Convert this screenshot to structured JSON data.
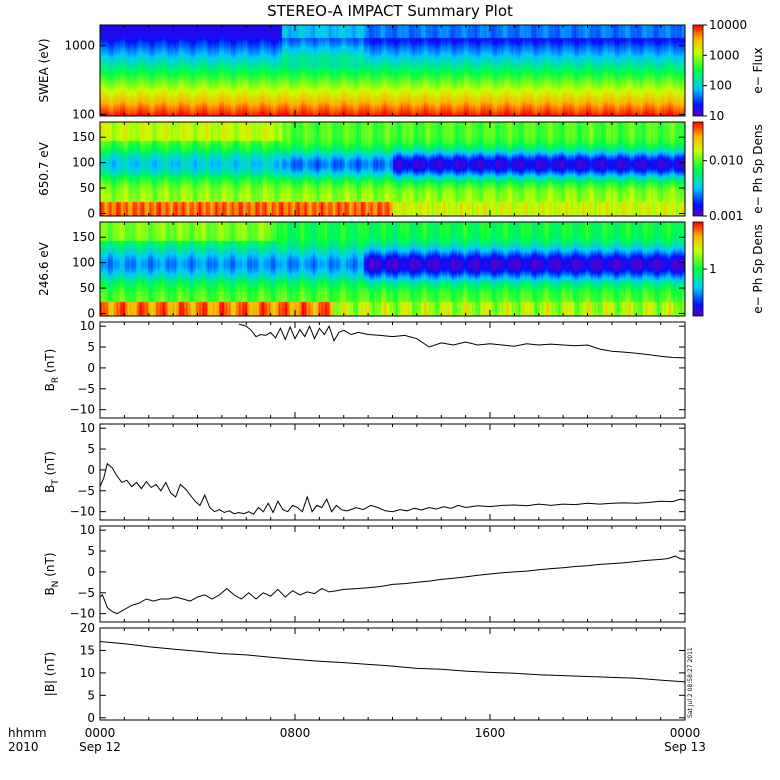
{
  "chart_data": {
    "title": "STEREO-A IMPACT Summary Plot",
    "time_axis": {
      "corner_label_top": "hhmm",
      "corner_label_bottom": "2010",
      "range_hours": [
        0,
        24
      ],
      "ticks": [
        {
          "hour": 0,
          "label": "0000",
          "sublabel": "Sep 12"
        },
        {
          "hour": 8,
          "label": "0800",
          "sublabel": ""
        },
        {
          "hour": 16,
          "label": "1600",
          "sublabel": ""
        },
        {
          "hour": 24,
          "label": "0000",
          "sublabel": "Sep 13"
        }
      ]
    },
    "timestamp_label": "Sat Jul  2 08:58:27 2011",
    "spectrograms": [
      {
        "type": "heatmap",
        "ylabel": "SWEA (eV)",
        "yscale": "log",
        "ylim": [
          95,
          2000
        ],
        "yticks": [
          {
            "v": 100,
            "label": "100"
          },
          {
            "v": 1000,
            "label": "1000"
          }
        ],
        "colorbar_label": "e− Flux",
        "colorbar_scale": "log",
        "colorbar_range": [
          10,
          10000
        ],
        "colorbar_ticks": [
          {
            "v": 10,
            "label": "10"
          },
          {
            "v": 100,
            "label": "100"
          },
          {
            "v": 1000,
            "label": "1000"
          },
          {
            "v": 10000,
            "label": "10000"
          }
        ]
      },
      {
        "type": "heatmap",
        "ylabel": "650.7 eV",
        "yscale": "linear",
        "ylim": [
          -5,
          180
        ],
        "yticks": [
          {
            "v": 0,
            "label": "0"
          },
          {
            "v": 50,
            "label": "50"
          },
          {
            "v": 100,
            "label": "100"
          },
          {
            "v": 150,
            "label": "150"
          }
        ],
        "colorbar_label": "e− Ph Sp Dens",
        "colorbar_scale": "log",
        "colorbar_range": [
          0.001,
          0.05
        ],
        "colorbar_ticks": [
          {
            "v": 0.001,
            "label": "0.001"
          },
          {
            "v": 0.01,
            "label": "0.010"
          }
        ]
      },
      {
        "type": "heatmap",
        "ylabel": "246.6 eV",
        "yscale": "linear",
        "ylim": [
          -5,
          180
        ],
        "yticks": [
          {
            "v": 0,
            "label": "0"
          },
          {
            "v": 50,
            "label": "50"
          },
          {
            "v": 100,
            "label": "100"
          },
          {
            "v": 150,
            "label": "150"
          }
        ],
        "colorbar_label": "e− Ph Sp Dens",
        "colorbar_scale": "log",
        "colorbar_range": [
          0.2,
          5
        ],
        "colorbar_ticks": [
          {
            "v": 1,
            "label": "1"
          }
        ]
      }
    ],
    "line_panels": [
      {
        "type": "line",
        "ylabel_main": "B",
        "ylabel_sub": "R",
        "ylabel_unit": " (nT)",
        "ylim": [
          -12,
          11
        ],
        "yticks": [
          {
            "v": -10,
            "label": "−10"
          },
          {
            "v": -5,
            "label": "−5"
          },
          {
            "v": 0,
            "label": "0"
          },
          {
            "v": 5,
            "label": "5"
          },
          {
            "v": 10,
            "label": "10"
          }
        ],
        "x": [
          5.7,
          6.0,
          6.2,
          6.4,
          6.6,
          6.8,
          7.0,
          7.2,
          7.4,
          7.6,
          7.8,
          8.0,
          8.2,
          8.4,
          8.6,
          8.8,
          9.0,
          9.2,
          9.4,
          9.6,
          9.8,
          10.0,
          10.3,
          10.6,
          11.0,
          11.5,
          12.0,
          12.5,
          13.0,
          13.5,
          14.0,
          14.5,
          15.0,
          15.5,
          16.0,
          16.5,
          17.0,
          17.5,
          18.0,
          18.5,
          19.0,
          19.5,
          20.0,
          20.5,
          21.0,
          21.5,
          22.0,
          22.5,
          23.0,
          23.5,
          24.0
        ],
        "y": [
          10.5,
          10.0,
          9.0,
          7.5,
          8.0,
          7.8,
          8.5,
          7.2,
          9.5,
          6.8,
          9.8,
          7.0,
          9.2,
          7.5,
          10.0,
          7.0,
          9.5,
          8.0,
          10.0,
          6.5,
          8.5,
          9.0,
          8.0,
          8.5,
          8.0,
          7.8,
          7.5,
          7.8,
          7.0,
          5.0,
          6.0,
          5.5,
          6.2,
          5.5,
          5.8,
          5.5,
          5.2,
          5.8,
          5.5,
          5.7,
          5.5,
          5.3,
          5.5,
          4.5,
          4.0,
          3.8,
          3.5,
          3.2,
          2.8,
          2.5,
          2.4
        ]
      },
      {
        "type": "line",
        "ylabel_main": "B",
        "ylabel_sub": "T",
        "ylabel_unit": " (nT)",
        "ylim": [
          -12,
          11
        ],
        "yticks": [
          {
            "v": -10,
            "label": "−10"
          },
          {
            "v": -5,
            "label": "−5"
          },
          {
            "v": 0,
            "label": "0"
          },
          {
            "v": 5,
            "label": "5"
          },
          {
            "v": 10,
            "label": "10"
          }
        ],
        "x": [
          0.0,
          0.15,
          0.3,
          0.5,
          0.7,
          0.9,
          1.1,
          1.3,
          1.5,
          1.7,
          1.9,
          2.1,
          2.3,
          2.5,
          2.7,
          2.9,
          3.1,
          3.3,
          3.5,
          3.7,
          3.9,
          4.1,
          4.3,
          4.5,
          4.7,
          4.9,
          5.1,
          5.3,
          5.5,
          5.7,
          5.9,
          6.1,
          6.3,
          6.5,
          6.7,
          6.9,
          7.1,
          7.3,
          7.5,
          7.7,
          7.9,
          8.1,
          8.3,
          8.5,
          8.7,
          8.9,
          9.1,
          9.3,
          9.5,
          9.7,
          9.9,
          10.1,
          10.3,
          10.5,
          10.8,
          11.1,
          11.4,
          11.7,
          12.0,
          12.3,
          12.6,
          12.9,
          13.2,
          13.5,
          13.8,
          14.1,
          14.4,
          14.7,
          15.0,
          15.5,
          16.0,
          16.5,
          17.0,
          17.5,
          18.0,
          18.5,
          19.0,
          19.5,
          20.0,
          20.5,
          21.0,
          21.5,
          22.0,
          22.5,
          23.0,
          23.5,
          23.8,
          24.0
        ],
        "y": [
          -4,
          -2,
          1.5,
          0.5,
          -1.5,
          -3.0,
          -2.5,
          -4.0,
          -3.0,
          -4.5,
          -2.8,
          -4.2,
          -3.5,
          -5.0,
          -3.0,
          -5.5,
          -6.5,
          -3.5,
          -4.5,
          -6.0,
          -7.5,
          -8.5,
          -6.0,
          -9.0,
          -10.0,
          -9.5,
          -10.2,
          -9.8,
          -10.5,
          -10.2,
          -10.5,
          -10.0,
          -10.6,
          -9.0,
          -10.0,
          -8.0,
          -10.2,
          -7.5,
          -9.5,
          -10.0,
          -8.5,
          -9.0,
          -10.0,
          -6.5,
          -10.0,
          -8.5,
          -9.0,
          -7.0,
          -10.0,
          -8.5,
          -9.5,
          -9.8,
          -9.5,
          -9.0,
          -9.5,
          -8.5,
          -9.0,
          -9.8,
          -10.0,
          -9.5,
          -9.8,
          -9.2,
          -9.6,
          -9.0,
          -9.4,
          -8.8,
          -9.2,
          -8.5,
          -9.0,
          -8.6,
          -8.8,
          -8.5,
          -8.4,
          -8.6,
          -8.2,
          -8.5,
          -8.2,
          -8.3,
          -8.0,
          -8.2,
          -8.0,
          -7.9,
          -8.0,
          -7.8,
          -7.5,
          -7.6,
          -7.0,
          -7.2
        ]
      },
      {
        "type": "line",
        "ylabel_main": "B",
        "ylabel_sub": "N",
        "ylabel_unit": " (nT)",
        "ylim": [
          -12,
          11
        ],
        "yticks": [
          {
            "v": -10,
            "label": "−10"
          },
          {
            "v": -5,
            "label": "−5"
          },
          {
            "v": 0,
            "label": "0"
          },
          {
            "v": 5,
            "label": "5"
          },
          {
            "v": 10,
            "label": "10"
          }
        ],
        "x": [
          0.0,
          0.1,
          0.2,
          0.3,
          0.5,
          0.7,
          1.0,
          1.3,
          1.6,
          1.9,
          2.2,
          2.5,
          2.8,
          3.1,
          3.4,
          3.7,
          4.0,
          4.3,
          4.6,
          4.9,
          5.2,
          5.5,
          5.8,
          6.1,
          6.4,
          6.7,
          7.0,
          7.3,
          7.6,
          7.9,
          8.2,
          8.5,
          8.8,
          9.1,
          9.4,
          9.7,
          10.0,
          10.5,
          11.0,
          11.5,
          12.0,
          12.5,
          13.0,
          13.5,
          14.0,
          14.5,
          15.0,
          15.5,
          16.0,
          16.5,
          17.0,
          17.5,
          18.0,
          18.5,
          19.0,
          19.5,
          20.0,
          20.5,
          21.0,
          21.5,
          22.0,
          22.5,
          23.0,
          23.3,
          23.6,
          23.8,
          24.0
        ],
        "y": [
          -6.0,
          -5.5,
          -7.0,
          -8.5,
          -9.5,
          -10.0,
          -9.0,
          -8.0,
          -7.5,
          -6.5,
          -7.0,
          -6.5,
          -6.5,
          -6.0,
          -6.5,
          -7.0,
          -6.0,
          -5.5,
          -6.5,
          -5.5,
          -4.0,
          -5.5,
          -6.5,
          -5.0,
          -6.5,
          -5.0,
          -5.8,
          -4.2,
          -6.0,
          -4.5,
          -5.5,
          -4.8,
          -5.2,
          -4.0,
          -4.8,
          -4.5,
          -4.2,
          -4.0,
          -3.8,
          -3.5,
          -3.0,
          -2.8,
          -2.5,
          -2.2,
          -1.8,
          -1.5,
          -1.2,
          -0.8,
          -0.5,
          -0.2,
          0.0,
          0.2,
          0.5,
          0.8,
          1.0,
          1.3,
          1.5,
          1.8,
          2.0,
          2.2,
          2.5,
          2.8,
          3.0,
          3.2,
          3.8,
          3.2,
          3.0
        ]
      },
      {
        "type": "line",
        "ylabel_main": "|B|",
        "ylabel_sub": "",
        "ylabel_unit": " (nT)",
        "ylim": [
          -0.5,
          20
        ],
        "yticks": [
          {
            "v": 0,
            "label": "0"
          },
          {
            "v": 5,
            "label": "5"
          },
          {
            "v": 10,
            "label": "10"
          },
          {
            "v": 15,
            "label": "15"
          },
          {
            "v": 20,
            "label": "20"
          }
        ],
        "x": [
          0.0,
          1.0,
          2.0,
          3.0,
          4.0,
          5.0,
          6.0,
          7.0,
          8.0,
          9.0,
          10.0,
          11.0,
          12.0,
          13.0,
          14.0,
          15.0,
          16.0,
          17.0,
          18.0,
          19.0,
          20.0,
          21.0,
          22.0,
          23.0,
          24.0
        ],
        "y": [
          17.0,
          16.5,
          15.8,
          15.3,
          14.8,
          14.3,
          14.0,
          13.5,
          13.0,
          12.6,
          12.3,
          11.9,
          11.5,
          11.0,
          10.8,
          10.4,
          10.1,
          9.9,
          9.6,
          9.4,
          9.2,
          9.0,
          8.8,
          8.4,
          8.0
        ]
      }
    ]
  }
}
